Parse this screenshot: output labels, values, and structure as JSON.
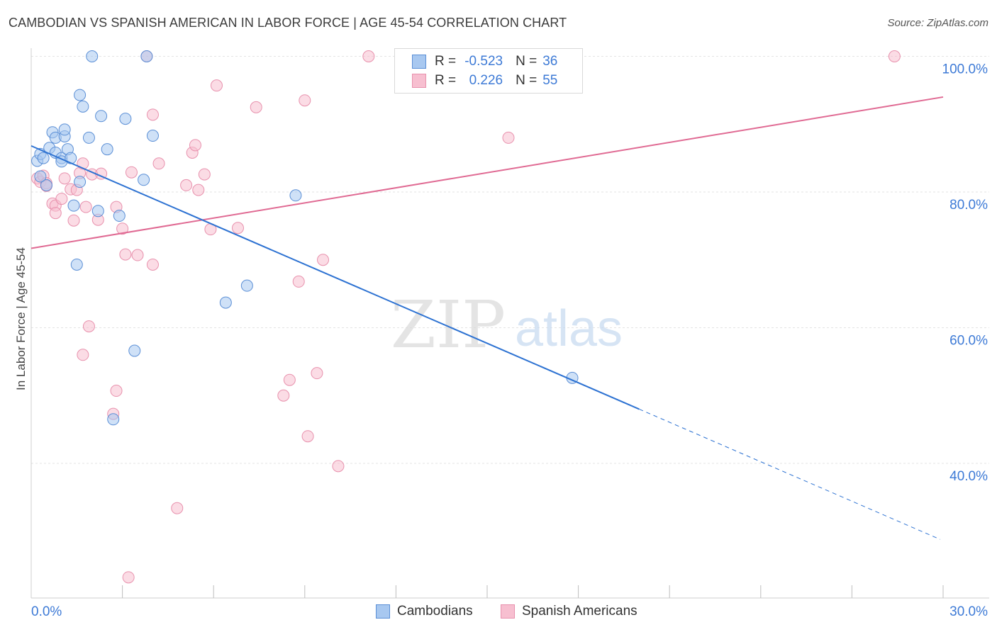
{
  "title": "CAMBODIAN VS SPANISH AMERICAN IN LABOR FORCE | AGE 45-54 CORRELATION CHART",
  "source": "Source: ZipAtlas.com",
  "watermark": {
    "zip": "ZIP",
    "atlas": "atlas"
  },
  "colors": {
    "cambodian_fill": "#a8c8f0",
    "cambodian_stroke": "#5b8fd6",
    "cambodian_line": "#2d72d2",
    "spanish_fill": "#f7bfd0",
    "spanish_stroke": "#e891ad",
    "spanish_line": "#e06a93",
    "tick_label": "#3d7ad6",
    "grid": "#e3e3e3"
  },
  "legend": {
    "r_label": "R =",
    "n_label": "N =",
    "rows": [
      {
        "r": "-0.523",
        "n": "36"
      },
      {
        "r": "0.226",
        "n": "55"
      }
    ]
  },
  "chart_data": {
    "type": "scatter",
    "title": "CAMBODIAN VS SPANISH AMERICAN IN LABOR FORCE | AGE 45-54 CORRELATION CHART",
    "xlabel": "",
    "ylabel": "In Labor Force | Age 45-54",
    "xlim": [
      0,
      30
    ],
    "ylim": [
      22,
      102
    ],
    "x_tick_labels": [
      "0.0%",
      "30.0%"
    ],
    "y_ticks": [
      40,
      60,
      80,
      100
    ],
    "y_tick_labels": [
      "40.0%",
      "60.0%",
      "80.0%",
      "100.0%"
    ],
    "grid": true,
    "legend_position": "top-center",
    "series": [
      {
        "name": "Cambodians",
        "r": -0.523,
        "n": 36,
        "trend": {
          "x0": 0.0,
          "y0": 86.8,
          "x1": 20.0,
          "y1": 48.0,
          "dash_to_x": 29.9,
          "dash_to_y": 28.8
        },
        "points": [
          [
            0.2,
            84.6
          ],
          [
            0.3,
            85.6
          ],
          [
            0.4,
            85.0
          ],
          [
            0.5,
            81.0
          ],
          [
            0.6,
            86.5
          ],
          [
            0.7,
            88.8
          ],
          [
            0.8,
            85.8
          ],
          [
            0.8,
            88.0
          ],
          [
            1.0,
            85.0
          ],
          [
            1.0,
            84.5
          ],
          [
            1.1,
            88.2
          ],
          [
            1.1,
            89.2
          ],
          [
            1.2,
            86.3
          ],
          [
            1.3,
            85.0
          ],
          [
            1.4,
            78.0
          ],
          [
            1.5,
            69.3
          ],
          [
            1.6,
            81.5
          ],
          [
            1.6,
            94.3
          ],
          [
            1.7,
            92.6
          ],
          [
            1.9,
            88.0
          ],
          [
            2.0,
            100.0
          ],
          [
            2.2,
            77.2
          ],
          [
            2.3,
            91.2
          ],
          [
            2.5,
            86.3
          ],
          [
            2.7,
            46.5
          ],
          [
            2.9,
            76.5
          ],
          [
            3.1,
            90.8
          ],
          [
            3.4,
            56.6
          ],
          [
            3.7,
            81.8
          ],
          [
            3.8,
            100.0
          ],
          [
            4.0,
            88.3
          ],
          [
            6.4,
            63.7
          ],
          [
            7.1,
            66.2
          ],
          [
            8.7,
            79.5
          ],
          [
            17.8,
            52.6
          ],
          [
            0.3,
            82.3
          ]
        ]
      },
      {
        "name": "Spanish Americans",
        "r": 0.226,
        "n": 55,
        "trend": {
          "x0": 0.0,
          "y0": 71.7,
          "x1": 30.0,
          "y1": 94.0
        },
        "points": [
          [
            0.2,
            82.0
          ],
          [
            0.3,
            81.5
          ],
          [
            0.4,
            82.4
          ],
          [
            0.5,
            81.3
          ],
          [
            0.5,
            80.9
          ],
          [
            0.7,
            78.3
          ],
          [
            0.8,
            78.0
          ],
          [
            0.8,
            76.9
          ],
          [
            1.0,
            79.0
          ],
          [
            1.1,
            82.0
          ],
          [
            1.3,
            80.4
          ],
          [
            1.4,
            75.8
          ],
          [
            1.5,
            80.3
          ],
          [
            1.6,
            82.8
          ],
          [
            1.7,
            84.2
          ],
          [
            1.7,
            56.0
          ],
          [
            1.8,
            77.8
          ],
          [
            1.9,
            60.2
          ],
          [
            2.0,
            82.6
          ],
          [
            2.2,
            75.9
          ],
          [
            2.3,
            82.7
          ],
          [
            2.7,
            47.3
          ],
          [
            2.8,
            50.7
          ],
          [
            2.8,
            77.8
          ],
          [
            3.0,
            74.6
          ],
          [
            3.1,
            70.8
          ],
          [
            3.2,
            23.2
          ],
          [
            3.3,
            82.9
          ],
          [
            3.5,
            70.7
          ],
          [
            3.8,
            100.0
          ],
          [
            4.0,
            69.3
          ],
          [
            4.0,
            91.4
          ],
          [
            4.2,
            84.2
          ],
          [
            4.8,
            33.4
          ],
          [
            5.1,
            81.0
          ],
          [
            5.3,
            85.8
          ],
          [
            5.4,
            86.9
          ],
          [
            5.5,
            80.3
          ],
          [
            5.7,
            82.6
          ],
          [
            5.9,
            74.5
          ],
          [
            6.1,
            95.7
          ],
          [
            6.8,
            74.7
          ],
          [
            7.4,
            92.5
          ],
          [
            8.3,
            50.0
          ],
          [
            8.5,
            52.3
          ],
          [
            8.8,
            66.8
          ],
          [
            9.0,
            93.5
          ],
          [
            9.1,
            44.0
          ],
          [
            9.4,
            53.3
          ],
          [
            9.6,
            70.0
          ],
          [
            10.1,
            39.6
          ],
          [
            11.1,
            100.0
          ],
          [
            15.7,
            88.0
          ],
          [
            17.9,
            100.0
          ],
          [
            28.4,
            100.0
          ]
        ]
      }
    ]
  }
}
